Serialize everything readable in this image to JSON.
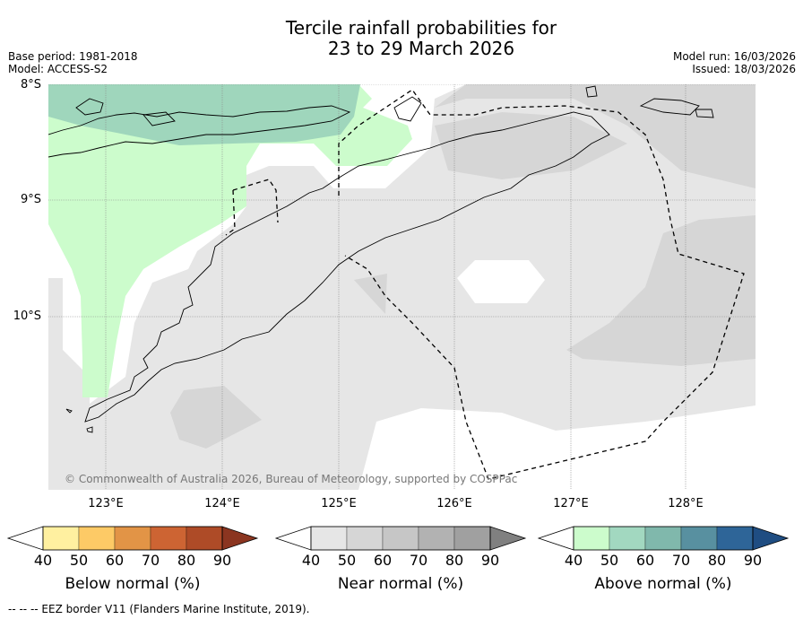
{
  "title": {
    "line1": "Tercile rainfall probabilities for",
    "line2": "23 to 29 March 2026"
  },
  "meta": {
    "base_period": "Base period: 1981-2018",
    "model": "Model: ACCESS-S2",
    "model_run": "Model run: 16/03/2026",
    "issued": "Issued: 18/03/2026"
  },
  "map": {
    "lat_labels": [
      "8°S",
      "9°S",
      "10°S"
    ],
    "lon_labels": [
      "123°E",
      "124°E",
      "125°E",
      "126°E",
      "127°E",
      "128°E"
    ],
    "copyright": "© Commonwealth of Australia 2026, Bureau of Meteorology, supported by COSPPac",
    "legend_colors": {
      "near_normal_40": "#e6e6e6",
      "near_normal_50": "#d6d6d6",
      "above_normal_40": "#ccfccc",
      "above_normal_50": "#9fd6bc"
    }
  },
  "colorbars": [
    {
      "label": "Below normal (%)",
      "ticks": [
        "40",
        "50",
        "60",
        "70",
        "80",
        "90"
      ],
      "colors": [
        "#ffffff",
        "#fff0a0",
        "#fdca66",
        "#e29446",
        "#cd6433",
        "#ae4b27",
        "#8b3520"
      ]
    },
    {
      "label": "Near normal (%)",
      "ticks": [
        "40",
        "50",
        "60",
        "70",
        "80",
        "90"
      ],
      "colors": [
        "#ffffff",
        "#e6e6e6",
        "#d6d6d6",
        "#c6c6c6",
        "#b2b2b2",
        "#a0a0a0",
        "#808080"
      ]
    },
    {
      "label": "Above normal (%)",
      "ticks": [
        "40",
        "50",
        "60",
        "70",
        "80",
        "90"
      ],
      "colors": [
        "#ffffff",
        "#ccfccc",
        "#a2d8c0",
        "#80b8ac",
        "#5890a0",
        "#2e6598",
        "#1f4d82"
      ]
    }
  ],
  "footer": "--  --  -- EEZ border V11 (Flanders Marine Institute, 2019)."
}
